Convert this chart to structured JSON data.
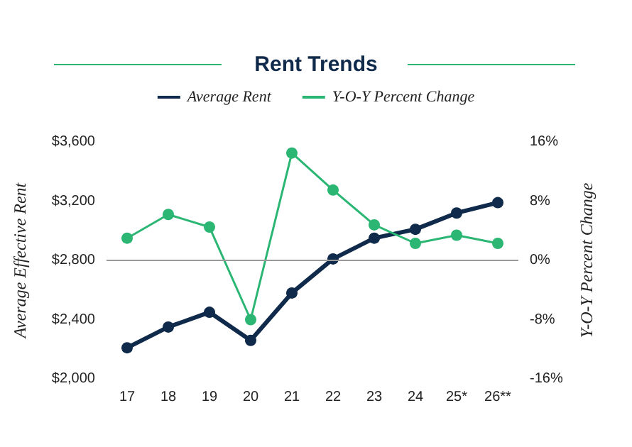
{
  "chart_data": {
    "type": "line",
    "title": "Rent Trends",
    "ylabel": "Average Effective Rent",
    "y2label": "Y-O-Y Percent Change",
    "categories": [
      "17",
      "18",
      "19",
      "20",
      "21",
      "22",
      "23",
      "24",
      "25*",
      "26**"
    ],
    "series": [
      {
        "name": "Average Rent",
        "color": "#0f2a4a",
        "values": [
          2210,
          2350,
          2450,
          2260,
          2580,
          2810,
          2950,
          3010,
          3120,
          3190
        ]
      },
      {
        "name": "Y-O-Y Percent Change",
        "color": "#2bb673",
        "axis": "y2",
        "values": [
          3,
          6.2,
          4.5,
          -8,
          14.5,
          9.5,
          4.8,
          2.3,
          3.4,
          2.3
        ]
      }
    ],
    "ylim": [
      2000,
      3600
    ],
    "yticks": [
      {
        "value": 2000,
        "label": "$2,000"
      },
      {
        "value": 2400,
        "label": "$2,400"
      },
      {
        "value": 2800,
        "label": "$2,800"
      },
      {
        "value": 3200,
        "label": "$3,200"
      },
      {
        "value": 3600,
        "label": "$3,600"
      }
    ],
    "y2lim": [
      -16,
      16
    ],
    "y2ticks": [
      {
        "value": -16,
        "label": "-16%"
      },
      {
        "value": -8,
        "label": "-8%"
      },
      {
        "value": 0,
        "label": "0%"
      },
      {
        "value": 8,
        "label": "8%"
      },
      {
        "value": 16,
        "label": "16%"
      }
    ],
    "ref_lines": [
      {
        "axis": "y2",
        "value": 0,
        "color": "#999999"
      }
    ],
    "grid": false,
    "legend": "top",
    "marker": "circle",
    "line_style": "solid"
  }
}
